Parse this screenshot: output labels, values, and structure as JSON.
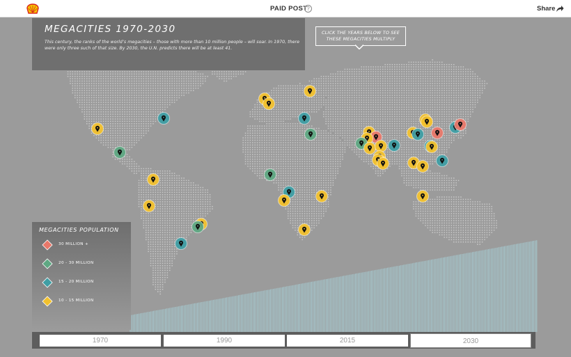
{
  "topbar": {
    "sponsor_label": "PAID POST",
    "help_glyph": "?",
    "share_label": "Share",
    "share_icon": "share-arrow-icon",
    "logo_icon": "shell-logo-icon"
  },
  "header": {
    "title": "MEGACITIES 1970-2030",
    "description": "This century, the ranks of the world’s megacities – those with more than 10 million people – will soar. In 1970, there were only three such of that size. By 2030, the U.N. predicts there will be at least 41.",
    "callout": "CLICK THE YEARS BELOW TO SEE THESE MEGACITIES MULTIPLY"
  },
  "legend": {
    "title": "MEGACITIES POPULATION",
    "items": [
      {
        "label": "30 MILLION +",
        "color": "#e8786a"
      },
      {
        "label": "20 - 30  MILLION",
        "color": "#5fa883"
      },
      {
        "label": "15 - 20  MILLION",
        "color": "#3f9ea4"
      },
      {
        "label": "10 - 15  MILLION",
        "color": "#f2c12e"
      }
    ]
  },
  "years": {
    "items": [
      "1970",
      "1990",
      "2015",
      "2030"
    ],
    "selected": "2030"
  },
  "colors": {
    "red": "#e8786a",
    "green": "#5fa883",
    "teal": "#3f9ea4",
    "yellow": "#f2c12e",
    "dots": "#c9c9c9",
    "stripes": "#a9dbe4"
  }
}
